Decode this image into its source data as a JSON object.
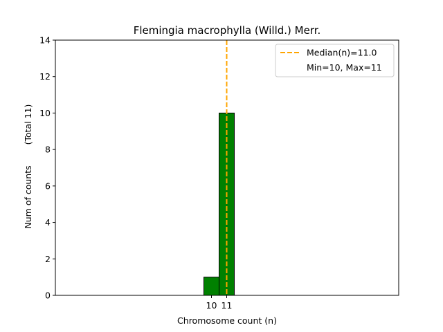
{
  "chart_data": {
    "type": "bar",
    "title": "Flemingia macrophylla (Willd.) Merr.",
    "xlabel": "Chromosome count (n)",
    "ylabel": "Num of counts",
    "ylabel_secondary": "(Total 11)",
    "ylim": [
      0,
      14
    ],
    "yticks": [
      0,
      2,
      4,
      6,
      8,
      10,
      12,
      14
    ],
    "x_tick_labels": [
      "10",
      "11"
    ],
    "bars": [
      {
        "x": 10,
        "value": 1
      },
      {
        "x": 11,
        "value": 10
      }
    ],
    "bar_color": "#008000",
    "bar_edge_color": "#000000",
    "median": 11.0,
    "median_color": "#ffa500",
    "legend": {
      "placement": "top-right",
      "entries": [
        "Median(n)=11.0",
        "Min=10, Max=11"
      ]
    },
    "grid": false
  }
}
